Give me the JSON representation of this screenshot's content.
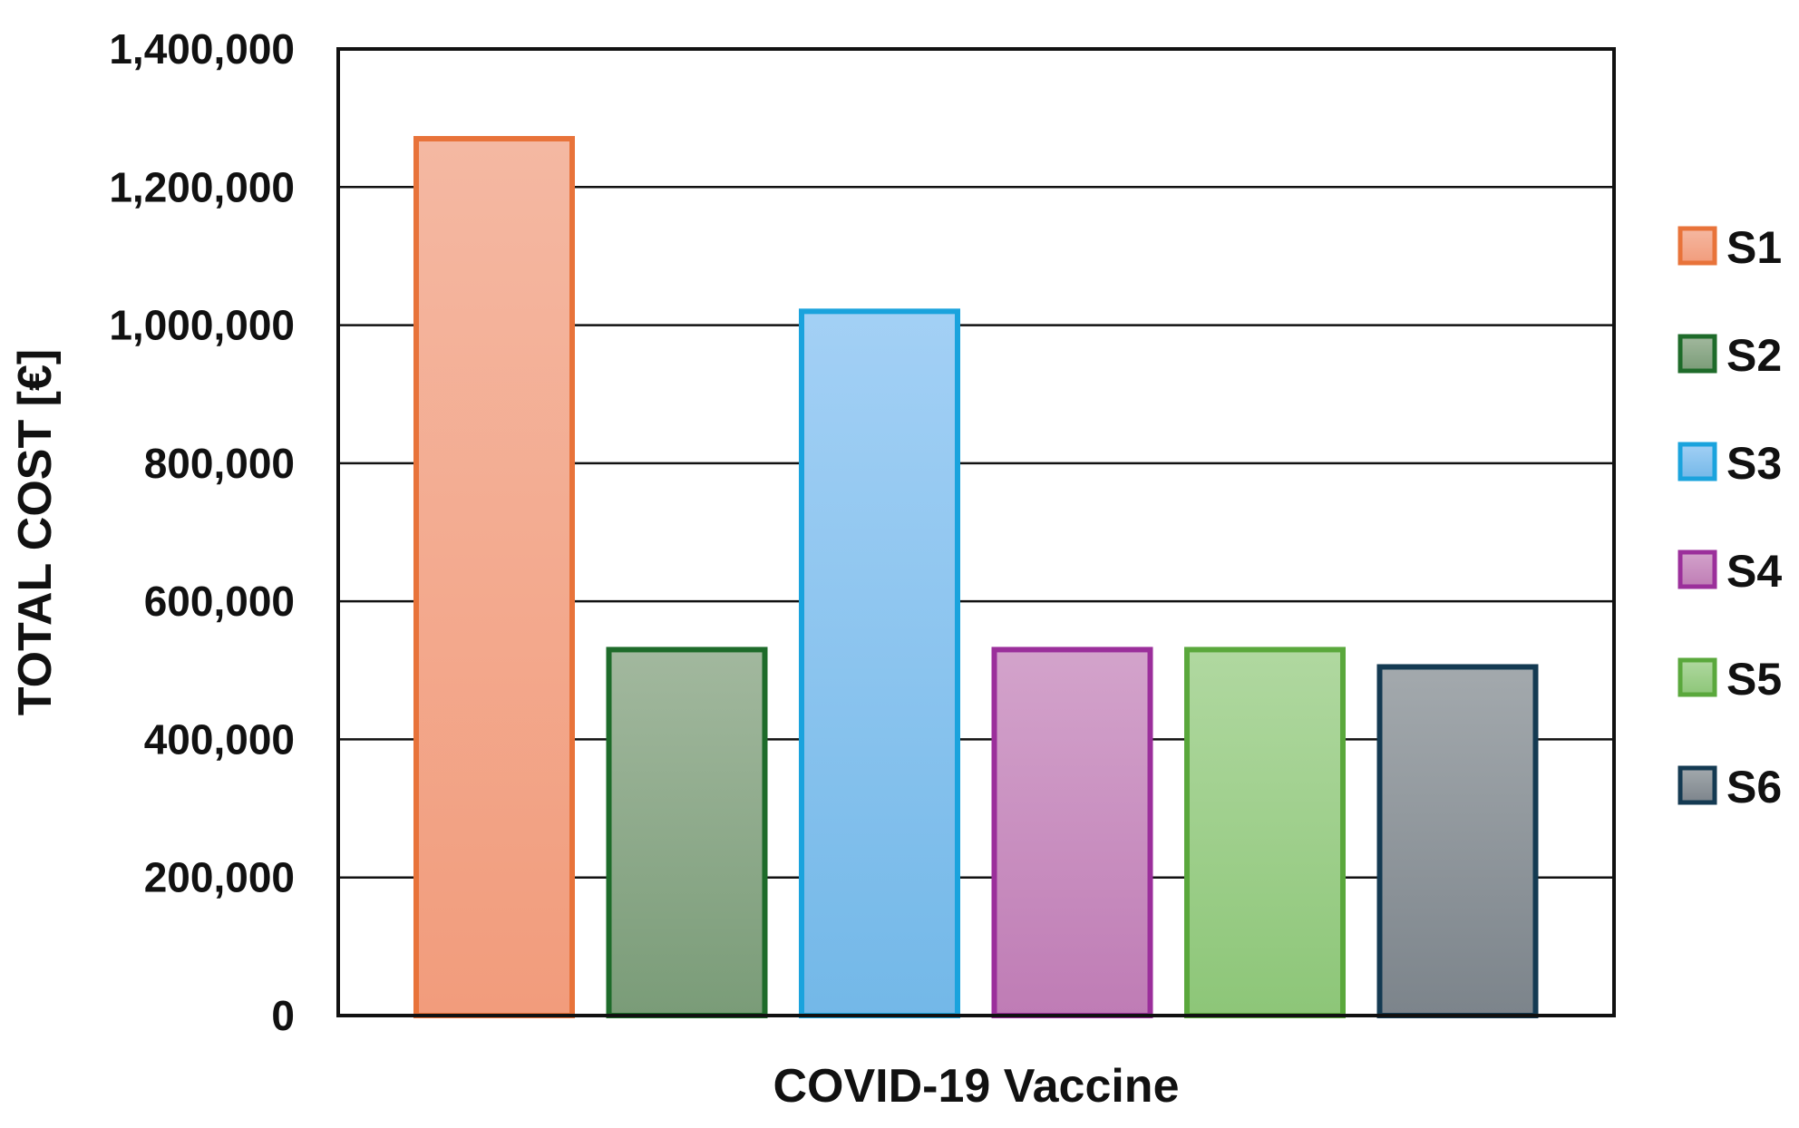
{
  "chart_data": {
    "type": "bar",
    "title": "",
    "xlabel": "COVID-19 Vaccine",
    "ylabel": "TOTAL COST [€]",
    "ylim": [
      0,
      1400000
    ],
    "yticks": [
      0,
      200000,
      400000,
      600000,
      800000,
      1000000,
      1200000,
      1400000
    ],
    "ytick_labels": [
      "0",
      "200,000",
      "400,000",
      "600,000",
      "800,000",
      "1,000,000",
      "1,200,000",
      "1,400,000"
    ],
    "grid": true,
    "legend_position": "right",
    "series": [
      {
        "name": "S1",
        "value": 1270000,
        "stroke": "#e8733a",
        "fill_top": "#f4b8a2",
        "fill_bottom": "#f29c7c"
      },
      {
        "name": "S2",
        "value": 530000,
        "stroke": "#1e6b2a",
        "fill_top": "#a2b89e",
        "fill_bottom": "#7a9c78"
      },
      {
        "name": "S3",
        "value": 1020000,
        "stroke": "#1aa3dd",
        "fill_top": "#a3d0f5",
        "fill_bottom": "#73b8e8"
      },
      {
        "name": "S4",
        "value": 530000,
        "stroke": "#9b2f9b",
        "fill_top": "#d3a3cb",
        "fill_bottom": "#bf7cb5"
      },
      {
        "name": "S5",
        "value": 530000,
        "stroke": "#5aa83c",
        "fill_top": "#b0d8a0",
        "fill_bottom": "#8dc678"
      },
      {
        "name": "S6",
        "value": 505000,
        "stroke": "#143a52",
        "fill_top": "#a3a9ad",
        "fill_bottom": "#7c848b"
      }
    ]
  }
}
